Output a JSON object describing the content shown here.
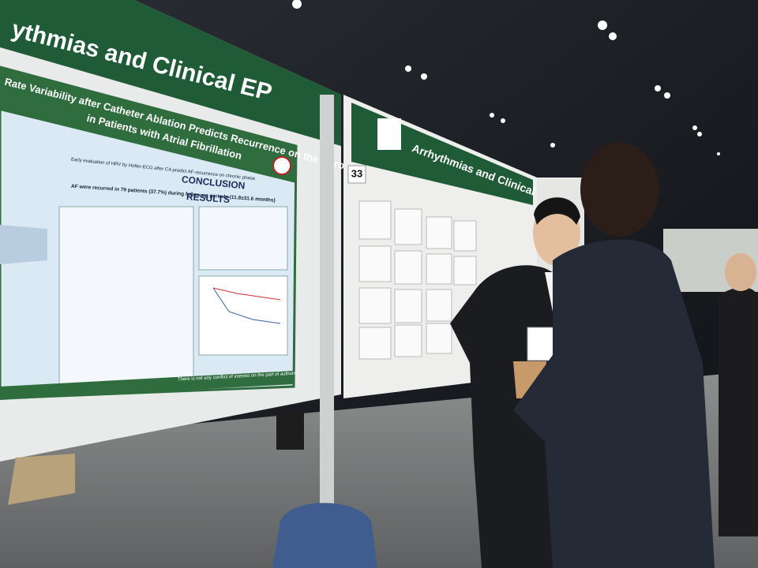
{
  "left_board": {
    "banner": "ythmias and Clinical EP",
    "poster": {
      "title_line1": "Rate Variability after Catheter Ablation Predicts Recurrence on the Chronic Phase",
      "title_line2": "in Patients with Atrial Fibrillation",
      "conclusion_heading": "CONCLUSION",
      "conclusion_1": "Early evaluation of HRV by Holter-ECG after CA predict AF-recurrence on chronic phase",
      "conclusion_2": "AF were recurred in 79 patients (37.7%) during follow-up periods (11.8±31.6 months)",
      "results_heading": "RESULTS",
      "footer": "There is not any conflict of interest on the part of authors"
    }
  },
  "right_board": {
    "number": "33",
    "banner": "Arrhythmias and Clinical EP"
  }
}
